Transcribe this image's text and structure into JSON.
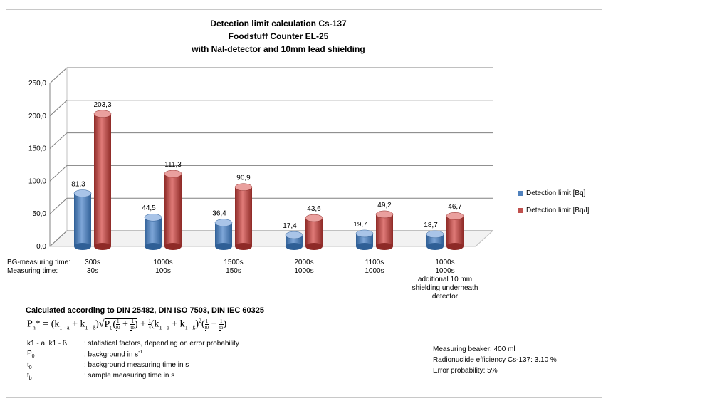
{
  "chart_data": {
    "type": "bar",
    "title_lines": [
      "Detection limit calculation  Cs-137",
      "Foodstuff Counter EL-25",
      "with NaI-detector and 10mm lead shielding"
    ],
    "ylim": [
      0,
      250
    ],
    "yticks": [
      "0,0",
      "50,0",
      "100,0",
      "150,0",
      "200,0",
      "250,0"
    ],
    "grid": true,
    "legend_position": "right",
    "categories": [
      {
        "bg": "300s",
        "meas": "30s",
        "extra": ""
      },
      {
        "bg": "1000s",
        "meas": "100s",
        "extra": ""
      },
      {
        "bg": "1500s",
        "meas": "150s",
        "extra": ""
      },
      {
        "bg": "2000s",
        "meas": "1000s",
        "extra": ""
      },
      {
        "bg": "1100s",
        "meas": "1000s",
        "extra": ""
      },
      {
        "bg": "1000s",
        "meas": "1000s",
        "extra": "additional 10 mm shielding underneath detector"
      }
    ],
    "row_labels": {
      "bg": "BG-measuring time:",
      "meas": "Measuring time:"
    },
    "series": [
      {
        "name": "Detection limit [Bq]",
        "color": "#4f81bd",
        "values": [
          81.3,
          44.5,
          36.4,
          17.4,
          19.7,
          18.7
        ],
        "labels": [
          "81,3",
          "44,5",
          "36,4",
          "17,4",
          "19,7",
          "18,7"
        ]
      },
      {
        "name": "Detection limit [Bq/l]",
        "color": "#c0504d",
        "values": [
          203.3,
          111.3,
          90.9,
          43.6,
          49.2,
          46.7
        ],
        "labels": [
          "203,3",
          "111,3",
          "90,9",
          "43,6",
          "49,2",
          "46,7"
        ]
      }
    ]
  },
  "calc": {
    "title": "Calculated according to DIN 25482, DIN ISO 7503, DIN IEC 60325",
    "formula": {
      "lhs": "P",
      "lhs_sub": "n",
      "lhs_suffix": "* = ",
      "k_open": "(k",
      "k1a_sub": "1 - a",
      "plus": " + k",
      "k1b_sub": "1 - ß",
      "k_close": ")",
      "sqrt": "√",
      "p0": "P",
      "p0_sub": "0",
      "one": "1",
      "t0": "t",
      "t0_sub": "0",
      "tb": "t",
      "tb_sub": "b",
      "quarter_num": "1",
      "quarter_den": "4",
      "squared": "2"
    },
    "definitions": [
      {
        "sym": "k1 - a, k1 - ß",
        "sub": "",
        "desc": ": statistical factors, depending on error probability"
      },
      {
        "sym": "P",
        "sub": "0",
        "desc": ": background in s",
        "sup": "-1"
      },
      {
        "sym": "t",
        "sub": "0",
        "desc": ": background measuring time in s"
      },
      {
        "sym": "t",
        "sub": "b",
        "desc": ": sample measuring time in s"
      }
    ]
  },
  "info": [
    "Measuring beaker: 400 ml",
    "Radionuclide efficiency Cs-137:  3.10 %",
    "Error probability:  5%"
  ]
}
